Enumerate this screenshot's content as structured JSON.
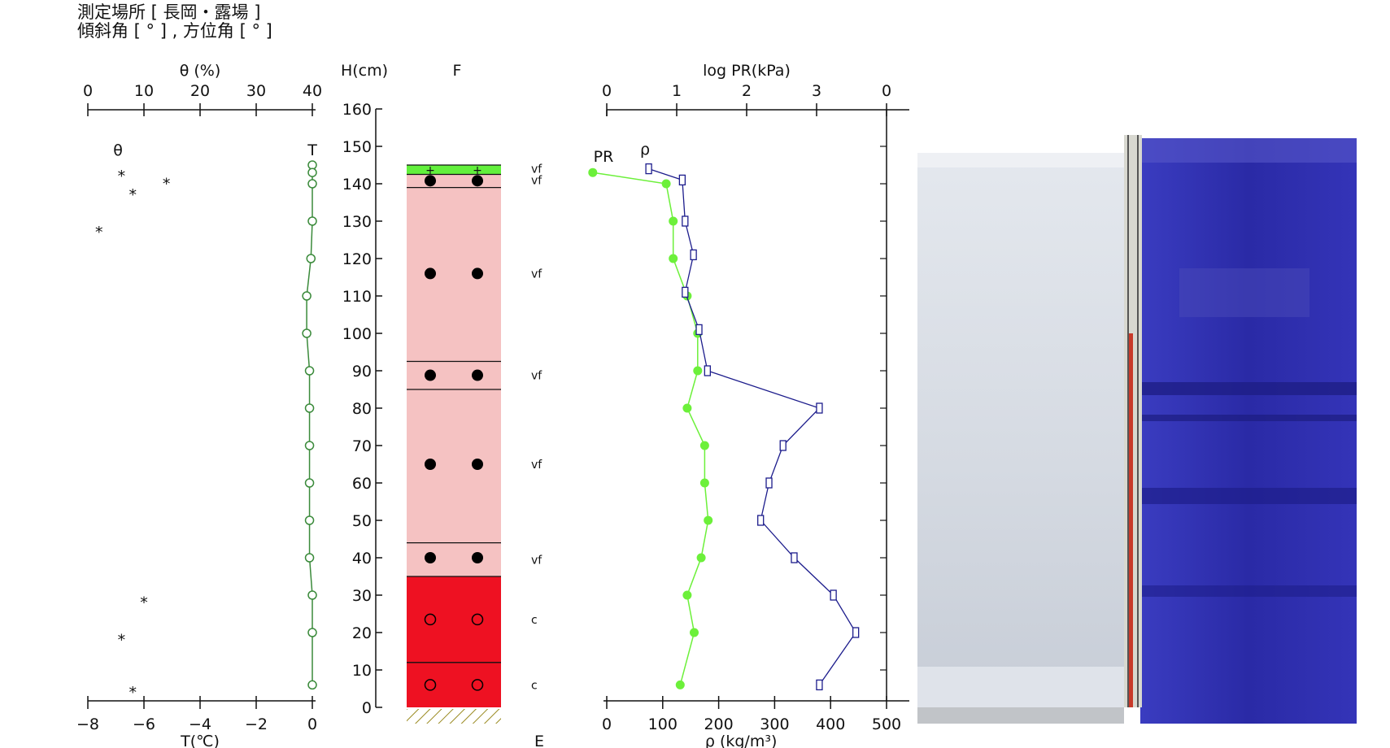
{
  "header": {
    "line1": "測定場所 [ 長岡・露場 ]",
    "line2": "傾斜角 [ ° ] , 方位角 [ ° ]"
  },
  "colors": {
    "temperature_line": "#3a8a3a",
    "pr_line": "#6cf03a",
    "density_line": "#1c1c8c",
    "layer_fresh": "#62f03c",
    "layer_pink": "#f5c2c2",
    "layer_red": "#ee1122",
    "ground_hatch": "#9a8a20"
  },
  "chart_data": [
    {
      "id": "theta-temperature",
      "type": "scatter",
      "top_axis": {
        "label": "θ (%)",
        "ticks": [
          0,
          10,
          20,
          30,
          40
        ],
        "range": [
          0,
          40
        ]
      },
      "bottom_axis": {
        "label": "T(℃)",
        "ticks": [
          "−8",
          "−6",
          "−4",
          "−2",
          "0"
        ],
        "range": [
          -8,
          0
        ]
      },
      "y_axis": {
        "label": "H(cm)",
        "ticks": [
          0,
          10,
          20,
          30,
          40,
          50,
          60,
          70,
          80,
          90,
          100,
          110,
          120,
          130,
          140,
          150,
          160
        ],
        "range": [
          0,
          160
        ]
      },
      "series": [
        {
          "name": "θ",
          "marker": "*",
          "axis": "top",
          "points": [
            [
              6,
              143
            ],
            [
              14,
              141
            ],
            [
              8,
              138
            ],
            [
              2,
              128
            ],
            [
              10,
              29
            ],
            [
              6,
              19
            ],
            [
              8,
              5
            ]
          ]
        },
        {
          "name": "T",
          "marker": "open-circle",
          "axis": "bottom",
          "points": [
            [
              0.0,
              145
            ],
            [
              0.0,
              143
            ],
            [
              0.0,
              140
            ],
            [
              0.0,
              130
            ],
            [
              -0.05,
              120
            ],
            [
              -0.2,
              110
            ],
            [
              -0.2,
              100
            ],
            [
              -0.1,
              90
            ],
            [
              -0.1,
              80
            ],
            [
              -0.1,
              70
            ],
            [
              -0.1,
              60
            ],
            [
              -0.1,
              50
            ],
            [
              -0.1,
              40
            ],
            [
              0.0,
              30
            ],
            [
              0.0,
              20
            ],
            [
              0.0,
              6
            ]
          ]
        }
      ]
    },
    {
      "id": "layer-column",
      "type": "table",
      "header": "F",
      "bottom_label": "E",
      "layers": [
        {
          "bottom": 142.5,
          "top": 145,
          "color": "fresh",
          "symbol": "+",
          "sym_y": 143.7
        },
        {
          "bottom": 139,
          "top": 142.5,
          "color": "pink",
          "symbol": "dot",
          "sym_y": 140.8
        },
        {
          "bottom": 92.5,
          "top": 139,
          "color": "pink",
          "symbol": "dot",
          "sym_y": 116
        },
        {
          "bottom": 85,
          "top": 92.5,
          "color": "pink",
          "symbol": "dot",
          "sym_y": 88.8
        },
        {
          "bottom": 44,
          "top": 85,
          "color": "pink",
          "symbol": "dot",
          "sym_y": 65
        },
        {
          "bottom": 35,
          "top": 44,
          "color": "pink",
          "symbol": "dot",
          "sym_y": 40
        },
        {
          "bottom": 12,
          "top": 35,
          "color": "red",
          "symbol": "ring",
          "sym_y": 23.5
        },
        {
          "bottom": 0,
          "top": 12,
          "color": "red",
          "symbol": "ring",
          "sym_y": 6
        }
      ],
      "grain_sizes": [
        {
          "text": "vf",
          "h": 144
        },
        {
          "text": "vf",
          "h": 141
        },
        {
          "text": "vf",
          "h": 116
        },
        {
          "text": "vf",
          "h": 88.8
        },
        {
          "text": "vf",
          "h": 65
        },
        {
          "text": "vf",
          "h": 39.5
        },
        {
          "text": "c",
          "h": 23.5
        },
        {
          "text": "c",
          "h": 6
        }
      ]
    },
    {
      "id": "pr-density",
      "type": "line",
      "top_axis": {
        "label": "log PR(kPa)",
        "ticks": [
          "0",
          "1",
          "2",
          "3",
          "0"
        ],
        "range": [
          0,
          4
        ]
      },
      "bottom_axis": {
        "label": "ρ (kg/m³)",
        "ticks": [
          0,
          100,
          200,
          300,
          400,
          500
        ],
        "range": [
          0,
          500
        ]
      },
      "y_range": [
        0,
        160
      ],
      "series": [
        {
          "name": "PR",
          "axis": "top",
          "marker": "filled-circle",
          "points": [
            [
              -0.2,
              143
            ],
            [
              0.85,
              140
            ],
            [
              0.95,
              130
            ],
            [
              0.95,
              120
            ],
            [
              1.15,
              110
            ],
            [
              1.3,
              100
            ],
            [
              1.3,
              90
            ],
            [
              1.15,
              80
            ],
            [
              1.4,
              70
            ],
            [
              1.4,
              60
            ],
            [
              1.45,
              50
            ],
            [
              1.35,
              40
            ],
            [
              1.15,
              30
            ],
            [
              1.25,
              20
            ],
            [
              1.05,
              6
            ]
          ]
        },
        {
          "name": "ρ",
          "axis": "bottom",
          "marker": "open-square",
          "points": [
            [
              75,
              144
            ],
            [
              135,
              141
            ],
            [
              140,
              130
            ],
            [
              155,
              121
            ],
            [
              140,
              111
            ],
            [
              165,
              101
            ],
            [
              180,
              90
            ],
            [
              380,
              80
            ],
            [
              315,
              70
            ],
            [
              290,
              60
            ],
            [
              275,
              50
            ],
            [
              335,
              40
            ],
            [
              405,
              30
            ],
            [
              445,
              20
            ],
            [
              380,
              6
            ]
          ]
        }
      ]
    }
  ],
  "photo": {
    "name": "snow-pit-photo"
  }
}
